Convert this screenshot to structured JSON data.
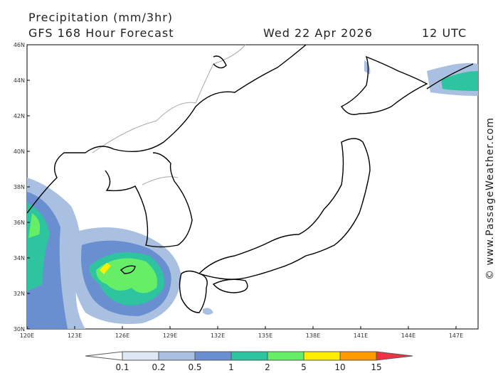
{
  "header": {
    "title": "Precipitation (mm/3hr)",
    "subtitle": "GFS 168 Hour Forecast",
    "date": "Wed 22 Apr 2026",
    "time": "12 UTC"
  },
  "watermark": "© www.PassageWeather.com",
  "lat_labels": [
    "46N",
    "44N",
    "42N",
    "40N",
    "38N",
    "36N",
    "34N",
    "32N",
    "30N"
  ],
  "lon_labels": [
    "120E",
    "123E",
    "126E",
    "129E",
    "132E",
    "135E",
    "138E",
    "141E",
    "144E",
    "147E"
  ],
  "legend": {
    "levels": [
      0.1,
      0.2,
      0.5,
      1,
      2,
      5,
      10,
      15
    ]
  }
}
